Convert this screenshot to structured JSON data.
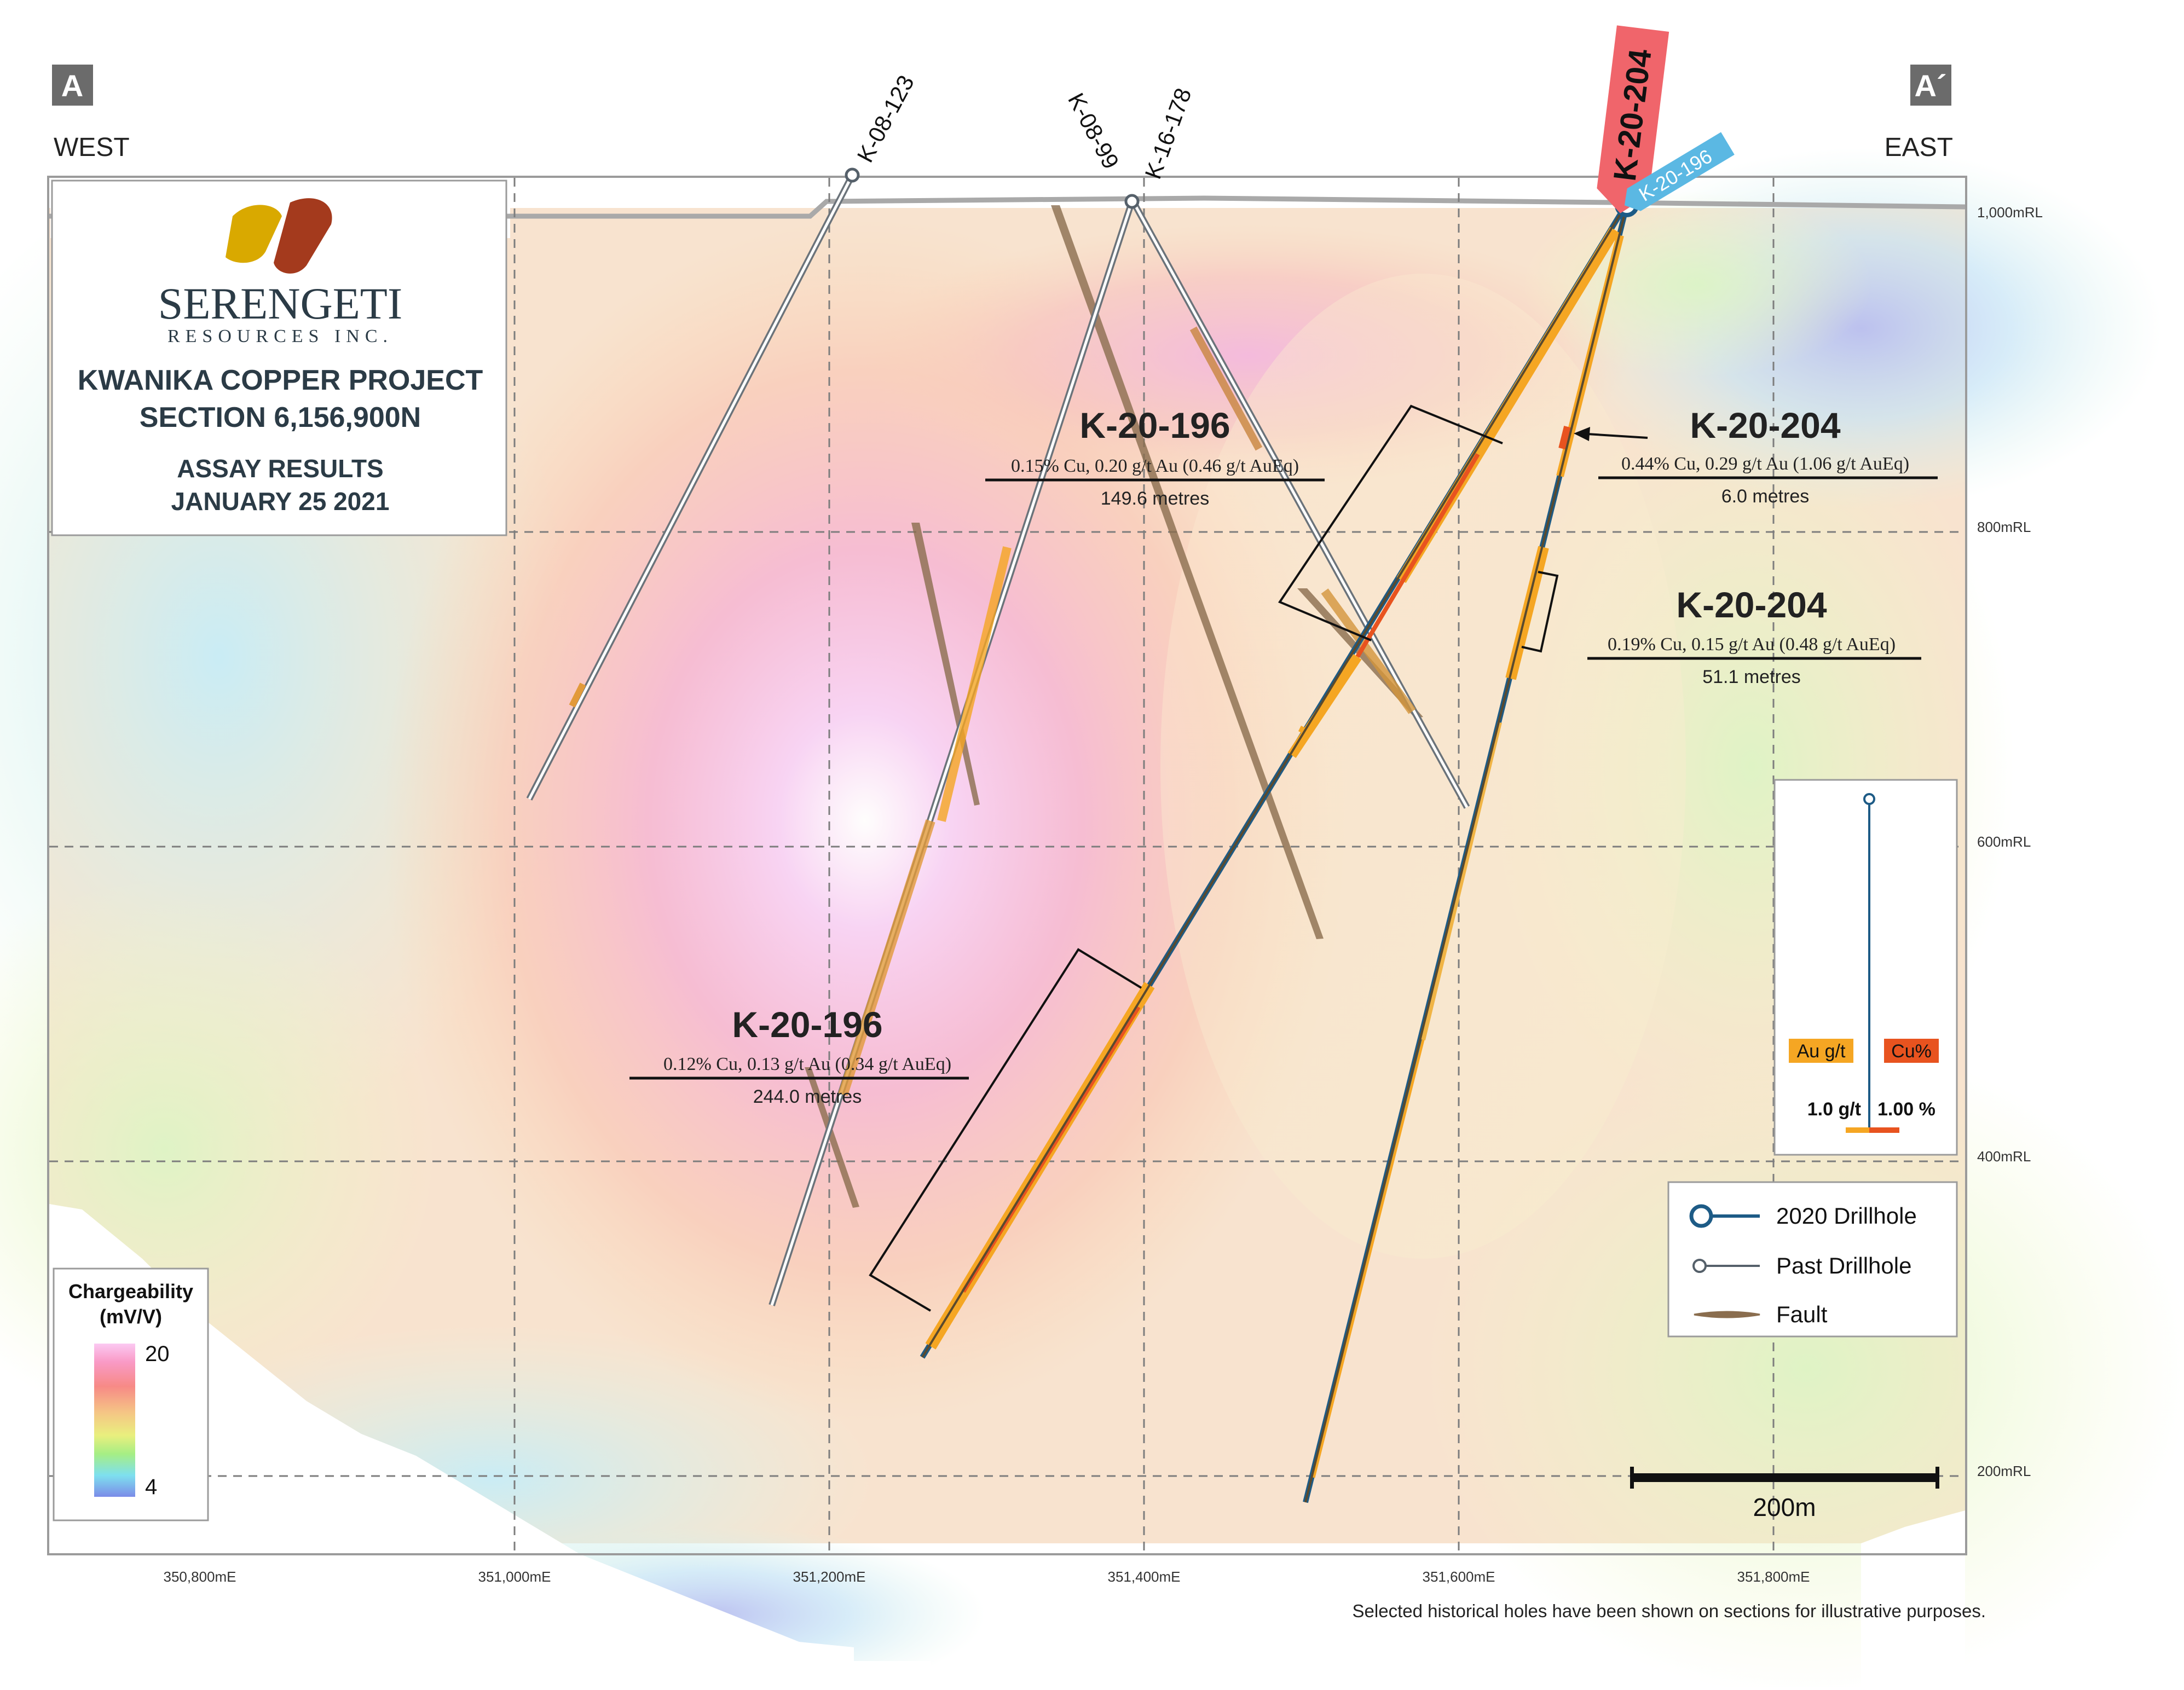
{
  "section_markers": {
    "left": "A",
    "right": "A´"
  },
  "directions": {
    "west": "WEST",
    "east": "EAST"
  },
  "logo": {
    "name": "SERENGETI",
    "sub": "RESOURCES INC."
  },
  "title_block": {
    "project": "KWANIKA COPPER PROJECT",
    "section": "SECTION 6,156,900N",
    "assay": "ASSAY RESULTS",
    "date": "JANUARY 25 2021"
  },
  "rl_labels": [
    "1,000mRL",
    "800mRL",
    "600mRL",
    "400mRL",
    "200mRL"
  ],
  "easting_labels": [
    "350,800mE",
    "351,000mE",
    "351,200mE",
    "351,400mE",
    "351,600mE",
    "351,800mE"
  ],
  "collar_labels": {
    "k08_123": "K-08-123",
    "k08_99": "K-08-99",
    "k16_178": "K-16-178",
    "k20_204": "K-20-204",
    "k20_196": "K-20-196"
  },
  "intercepts": [
    {
      "hole": "K-20-196",
      "grade": "0.15% Cu, 0.20 g/t Au (0.46 g/t AuEq)",
      "length": "149.6 metres"
    },
    {
      "hole": "K-20-204",
      "grade": "0.44% Cu, 0.29 g/t Au (1.06 g/t AuEq)",
      "length": "6.0 metres"
    },
    {
      "hole": "K-20-204",
      "grade": "0.19% Cu, 0.15 g/t Au (0.48 g/t AuEq)",
      "length": "51.1 metres"
    },
    {
      "hole": "K-20-196",
      "grade": "0.12% Cu, 0.13 g/t Au (0.34 g/t AuEq)",
      "length": "244.0 metres"
    }
  ],
  "histogram_legend": {
    "au_label": "Au g/t",
    "cu_label": "Cu%",
    "au_scale": "1.0 g/t",
    "cu_scale": "1.00 %"
  },
  "symbol_legend": {
    "drillhole_2020": "2020 Drillhole",
    "past_drillhole": "Past Drillhole",
    "fault": "Fault"
  },
  "chargeability": {
    "title_line1": "Chargeability",
    "title_line2": "(mV/V)",
    "max": "20",
    "min": "4"
  },
  "scale_bar": {
    "label": "200m"
  },
  "footnote": "Selected historical holes have been shown on sections for illustrative purposes.",
  "colors": {
    "hole_2020": "#1d5b86",
    "hole_past": "#55606a",
    "fault": "#8a6d4e",
    "au": "#f5a623",
    "cu": "#e8531f",
    "k20_204_tag": "#f0656b",
    "k20_196_tag": "#5bb8e3"
  }
}
